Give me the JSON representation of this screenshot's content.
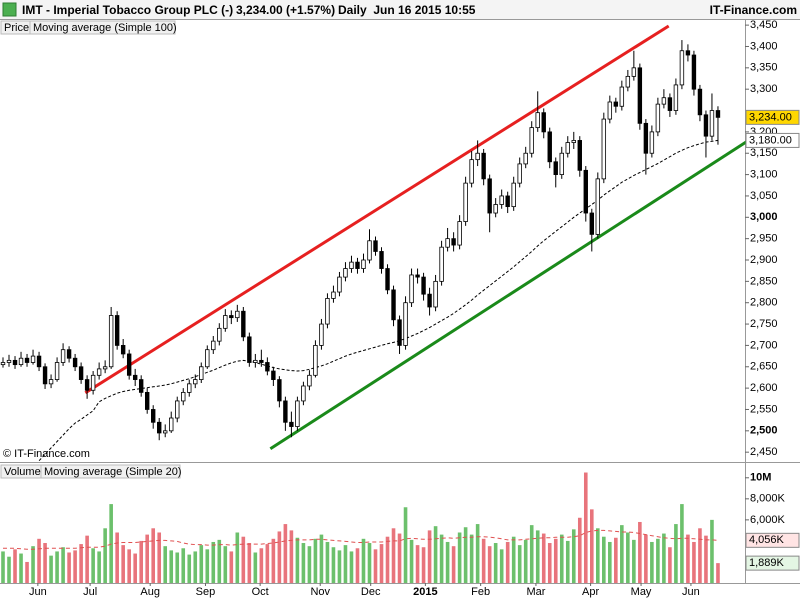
{
  "chart_data": {
    "type": "candlestick",
    "title": "IMT - Imperial Tobacco Group PLC (-)",
    "quote": "3,234.00 (+1.57%)",
    "period": "Daily  Jun 16 2015 10:55",
    "source": "IT-Finance.com",
    "copyright": "© IT-Finance.com",
    "legend": [
      "Price",
      "Moving average (Simple 100)"
    ],
    "colors": {
      "up": "#ffffff",
      "down": "#000000",
      "wick": "#000000",
      "ma": "#000000"
    },
    "xlim": [
      0,
      124
    ],
    "xticks": [
      {
        "value": 6.3,
        "label": "Jun"
      },
      {
        "value": 15,
        "label": "Jul"
      },
      {
        "value": 25,
        "label": "Aug"
      },
      {
        "value": 34.2,
        "label": "Sep"
      },
      {
        "value": 43.3,
        "label": "Oct"
      },
      {
        "value": 53.3,
        "label": "Nov"
      },
      {
        "value": 61.7,
        "label": "Dec"
      },
      {
        "value": 70.8,
        "label": "2015",
        "bold": true
      },
      {
        "value": 80,
        "label": "Feb"
      },
      {
        "value": 89.2,
        "label": "Mar"
      },
      {
        "value": 98.3,
        "label": "Apr"
      },
      {
        "value": 106.7,
        "label": "May"
      },
      {
        "value": 115,
        "label": "Jun"
      }
    ],
    "ylim": [
      2427,
      3462
    ],
    "yticks": [
      {
        "value": 2450,
        "label": "2,450"
      },
      {
        "value": 2500,
        "label": "2,500",
        "bold": true
      },
      {
        "value": 2550,
        "label": "2,550"
      },
      {
        "value": 2600,
        "label": "2,600"
      },
      {
        "value": 2650,
        "label": "2,650"
      },
      {
        "value": 2700,
        "label": "2,700"
      },
      {
        "value": 2750,
        "label": "2,750"
      },
      {
        "value": 2800,
        "label": "2,800"
      },
      {
        "value": 2850,
        "label": "2,850"
      },
      {
        "value": 2900,
        "label": "2,900"
      },
      {
        "value": 2950,
        "label": "2,950"
      },
      {
        "value": 3000,
        "label": "3,000",
        "bold": true
      },
      {
        "value": 3050,
        "label": "3,050"
      },
      {
        "value": 3100,
        "label": "3,100"
      },
      {
        "value": 3150,
        "label": "3,150"
      },
      {
        "value": 3200,
        "label": "3,200"
      },
      {
        "value": 3300,
        "label": "3,300"
      },
      {
        "value": 3350,
        "label": "3,350"
      },
      {
        "value": 3400,
        "label": "3,400"
      },
      {
        "value": 3450,
        "label": "3,450"
      }
    ],
    "last_labels": [
      {
        "value": 3234,
        "label": "3,234.00",
        "color": "#ffd700"
      },
      {
        "value": 3180,
        "label": "3,180.00",
        "color": "#ffffff"
      }
    ],
    "trendlines": [
      {
        "color": "#e62020",
        "x": [
          14.2,
          111.3
        ],
        "y": [
          2589,
          3448
        ]
      },
      {
        "color": "#1a8a1a",
        "x": [
          45,
          125.7
        ],
        "y": [
          2458,
          3190
        ]
      }
    ],
    "ohlc": [
      [
        2655,
        2672,
        2648,
        2660
      ],
      [
        2660,
        2678,
        2650,
        2665
      ],
      [
        2665,
        2675,
        2645,
        2655
      ],
      [
        2655,
        2685,
        2650,
        2670
      ],
      [
        2670,
        2680,
        2650,
        2660
      ],
      [
        2660,
        2690,
        2655,
        2675
      ],
      [
        2675,
        2685,
        2640,
        2650
      ],
      [
        2650,
        2658,
        2598,
        2610
      ],
      [
        2610,
        2632,
        2600,
        2620
      ],
      [
        2620,
        2672,
        2615,
        2660
      ],
      [
        2660,
        2705,
        2652,
        2690
      ],
      [
        2690,
        2698,
        2660,
        2670
      ],
      [
        2670,
        2680,
        2640,
        2650
      ],
      [
        2650,
        2660,
        2610,
        2620
      ],
      [
        2620,
        2630,
        2575,
        2595
      ],
      [
        2595,
        2640,
        2585,
        2630
      ],
      [
        2630,
        2660,
        2620,
        2645
      ],
      [
        2645,
        2665,
        2635,
        2650
      ],
      [
        2650,
        2790,
        2645,
        2770
      ],
      [
        2770,
        2780,
        2690,
        2700
      ],
      [
        2700,
        2715,
        2670,
        2680
      ],
      [
        2680,
        2690,
        2620,
        2630
      ],
      [
        2630,
        2645,
        2605,
        2620
      ],
      [
        2620,
        2630,
        2580,
        2590
      ],
      [
        2590,
        2600,
        2540,
        2550
      ],
      [
        2550,
        2560,
        2505,
        2520
      ],
      [
        2520,
        2530,
        2478,
        2495
      ],
      [
        2495,
        2515,
        2485,
        2500
      ],
      [
        2500,
        2545,
        2495,
        2530
      ],
      [
        2530,
        2580,
        2520,
        2570
      ],
      [
        2570,
        2600,
        2560,
        2590
      ],
      [
        2590,
        2620,
        2580,
        2610
      ],
      [
        2610,
        2632,
        2600,
        2620
      ],
      [
        2620,
        2660,
        2612,
        2650
      ],
      [
        2650,
        2700,
        2645,
        2690
      ],
      [
        2690,
        2722,
        2680,
        2710
      ],
      [
        2710,
        2752,
        2700,
        2740
      ],
      [
        2740,
        2785,
        2732,
        2770
      ],
      [
        2770,
        2782,
        2750,
        2765
      ],
      [
        2765,
        2795,
        2755,
        2780
      ],
      [
        2780,
        2790,
        2710,
        2720
      ],
      [
        2720,
        2730,
        2650,
        2660
      ],
      [
        2660,
        2680,
        2648,
        2665
      ],
      [
        2665,
        2690,
        2650,
        2660
      ],
      [
        2660,
        2672,
        2630,
        2640
      ],
      [
        2640,
        2650,
        2605,
        2620
      ],
      [
        2620,
        2628,
        2555,
        2570
      ],
      [
        2570,
        2580,
        2500,
        2520
      ],
      [
        2520,
        2545,
        2485,
        2510
      ],
      [
        2510,
        2580,
        2500,
        2570
      ],
      [
        2570,
        2615,
        2560,
        2605
      ],
      [
        2605,
        2642,
        2595,
        2630
      ],
      [
        2630,
        2712,
        2625,
        2700
      ],
      [
        2700,
        2762,
        2690,
        2750
      ],
      [
        2750,
        2822,
        2740,
        2810
      ],
      [
        2810,
        2840,
        2800,
        2825
      ],
      [
        2825,
        2872,
        2815,
        2860
      ],
      [
        2860,
        2895,
        2850,
        2880
      ],
      [
        2880,
        2910,
        2870,
        2895
      ],
      [
        2895,
        2905,
        2868,
        2880
      ],
      [
        2880,
        2915,
        2870,
        2900
      ],
      [
        2900,
        2972,
        2892,
        2945
      ],
      [
        2945,
        2955,
        2910,
        2920
      ],
      [
        2920,
        2930,
        2868,
        2880
      ],
      [
        2880,
        2890,
        2820,
        2830
      ],
      [
        2830,
        2840,
        2745,
        2760
      ],
      [
        2760,
        2770,
        2680,
        2700
      ],
      [
        2700,
        2815,
        2690,
        2800
      ],
      [
        2800,
        2880,
        2790,
        2865
      ],
      [
        2865,
        2880,
        2845,
        2860
      ],
      [
        2860,
        2870,
        2805,
        2820
      ],
      [
        2820,
        2835,
        2770,
        2790
      ],
      [
        2790,
        2865,
        2780,
        2850
      ],
      [
        2850,
        2945,
        2840,
        2930
      ],
      [
        2930,
        2975,
        2920,
        2950
      ],
      [
        2950,
        2965,
        2920,
        2935
      ],
      [
        2935,
        3005,
        2925,
        2990
      ],
      [
        2990,
        3095,
        2980,
        3080
      ],
      [
        3080,
        3155,
        3070,
        3135
      ],
      [
        3135,
        3180,
        3120,
        3150
      ],
      [
        3150,
        3160,
        3075,
        3090
      ],
      [
        3090,
        3100,
        2965,
        3010
      ],
      [
        3010,
        3045,
        3000,
        3030
      ],
      [
        3030,
        3065,
        3020,
        3050
      ],
      [
        3050,
        3060,
        3010,
        3025
      ],
      [
        3025,
        3095,
        3015,
        3080
      ],
      [
        3080,
        3140,
        3070,
        3125
      ],
      [
        3125,
        3165,
        3115,
        3150
      ],
      [
        3150,
        3225,
        3140,
        3210
      ],
      [
        3210,
        3295,
        3200,
        3245
      ],
      [
        3245,
        3255,
        3185,
        3200
      ],
      [
        3200,
        3210,
        3115,
        3130
      ],
      [
        3130,
        3140,
        3070,
        3100
      ],
      [
        3100,
        3165,
        3090,
        3150
      ],
      [
        3150,
        3190,
        3140,
        3175
      ],
      [
        3175,
        3200,
        3160,
        3180
      ],
      [
        3180,
        3190,
        3095,
        3110
      ],
      [
        3110,
        3120,
        2990,
        3010
      ],
      [
        3010,
        3020,
        2920,
        2960
      ],
      [
        2960,
        3105,
        2950,
        3090
      ],
      [
        3090,
        3245,
        3080,
        3230
      ],
      [
        3230,
        3285,
        3220,
        3270
      ],
      [
        3270,
        3280,
        3245,
        3260
      ],
      [
        3260,
        3320,
        3250,
        3305
      ],
      [
        3305,
        3345,
        3295,
        3330
      ],
      [
        3330,
        3390,
        3320,
        3350
      ],
      [
        3350,
        3360,
        3205,
        3220
      ],
      [
        3220,
        3230,
        3100,
        3150
      ],
      [
        3150,
        3215,
        3140,
        3200
      ],
      [
        3200,
        3280,
        3190,
        3265
      ],
      [
        3265,
        3300,
        3255,
        3280
      ],
      [
        3280,
        3290,
        3235,
        3250
      ],
      [
        3250,
        3325,
        3240,
        3310
      ],
      [
        3310,
        3415,
        3300,
        3390
      ],
      [
        3390,
        3405,
        3365,
        3380
      ],
      [
        3380,
        3390,
        3285,
        3300
      ],
      [
        3300,
        3310,
        3225,
        3240
      ],
      [
        3240,
        3250,
        3140,
        3190
      ],
      [
        3190,
        3290,
        3180,
        3250
      ],
      [
        3250,
        3260,
        3170,
        3234
      ]
    ],
    "ma": [
      null,
      null,
      null,
      null,
      null,
      null,
      2430,
      2445,
      2460,
      2475,
      2490,
      2505,
      2518,
      2527,
      2537,
      2547,
      2568,
      2576,
      2582,
      2588,
      2592,
      2595,
      2597,
      2599,
      2601,
      2603,
      2605,
      2607,
      2610,
      2614,
      2618,
      2622,
      2627,
      2632,
      2637,
      2642,
      2648,
      2654,
      2659,
      2663,
      2665,
      2663,
      2660,
      2656,
      2652,
      2648,
      2645,
      2643,
      2641,
      2640,
      2641,
      2644,
      2648,
      2652,
      2657,
      2663,
      2669,
      2675,
      2680,
      2684,
      2688,
      2692,
      2696,
      2700,
      2704,
      2707,
      2711,
      2716,
      2722,
      2728,
      2735,
      2742,
      2750,
      2758,
      2766,
      2775,
      2785,
      2795,
      2806,
      2818,
      2829,
      2840,
      2851,
      2862,
      2873,
      2884,
      2896,
      2908,
      2920,
      2933,
      2945,
      2956,
      2967,
      2978,
      2989,
      3000,
      3010,
      3020,
      3030,
      3040,
      3052,
      3062,
      3072,
      3082,
      3090,
      3098,
      3105,
      3112,
      3119,
      3126,
      3134,
      3142,
      3150,
      3157,
      3163,
      3168,
      3172,
      3176,
      3178,
      3180
    ],
    "volume": {
      "name": "Volume",
      "ma_name": "Moving average (Simple 20)",
      "colors": {
        "up": "#6cc06c",
        "down": "#e8747c",
        "ma": "#e05050",
        "name": "#3a9a3a"
      },
      "ylim": [
        0,
        11500
      ],
      "yticks": [
        {
          "value": 10000,
          "label": "10M",
          "bold": true
        },
        {
          "value": 8000,
          "label": "8,000K"
        },
        {
          "value": 6000,
          "label": "6,000K"
        }
      ],
      "last_labels": [
        {
          "value": 4056,
          "label": "4,056K",
          "color": "#ffe4e4"
        },
        {
          "value": 1889,
          "label": "1,889K",
          "color": "#e4f6e4"
        }
      ],
      "values": [
        3000,
        2500,
        3200,
        2800,
        2000,
        3500,
        4200,
        3800,
        2600,
        3000,
        3400,
        2900,
        3100,
        3700,
        4500,
        3300,
        3000,
        5200,
        7500,
        4800,
        3600,
        3200,
        2800,
        4000,
        4600,
        5200,
        4800,
        3500,
        3100,
        2900,
        3300,
        2700,
        3000,
        3600,
        3200,
        3900,
        4100,
        3500,
        3000,
        4800,
        4400,
        3800,
        2900,
        3300,
        3700,
        4200,
        4900,
        5600,
        5000,
        4300,
        3800,
        3500,
        4200,
        4600,
        3900,
        3400,
        3100,
        3600,
        3000,
        3300,
        4200,
        3800,
        3200,
        3700,
        4400,
        5200,
        4700,
        7200,
        4100,
        3600,
        3400,
        5000,
        5400,
        4600,
        3900,
        3500,
        4800,
        5300,
        4600,
        5600,
        4200,
        3500,
        3800,
        3200,
        3900,
        4400,
        3600,
        4100,
        5500,
        5000,
        4700,
        3800,
        4200,
        4600,
        4000,
        5100,
        6200,
        10500,
        7000,
        5200,
        4400,
        3900,
        4300,
        5500,
        4800,
        4100,
        5800,
        4600,
        3900,
        4200,
        4700,
        3400,
        5600,
        7500,
        4600,
        3900,
        5200,
        4500,
        6000,
        1889
      ],
      "ma": [
        3300,
        3300,
        3300,
        3250,
        3200,
        3200,
        3250,
        3300,
        3300,
        3300,
        3300,
        3300,
        3300,
        3350,
        3400,
        3400,
        3400,
        3500,
        3700,
        3800,
        3850,
        3850,
        3850,
        3900,
        3950,
        4000,
        4050,
        4050,
        4000,
        3950,
        3800,
        3700,
        3650,
        3650,
        3600,
        3600,
        3650,
        3650,
        3600,
        3650,
        3700,
        3700,
        3700,
        3700,
        3750,
        3800,
        3900,
        4000,
        4050,
        4100,
        4100,
        4100,
        4150,
        4150,
        4100,
        4050,
        4000,
        3950,
        3900,
        3850,
        3850,
        3900,
        3900,
        3900,
        3950,
        4000,
        4000,
        4200,
        4250,
        4200,
        4150,
        4150,
        4200,
        4250,
        4300,
        4250,
        4300,
        4350,
        4350,
        4400,
        4400,
        4350,
        4300,
        4200,
        4100,
        4100,
        4100,
        4150,
        4200,
        4250,
        4300,
        4300,
        4350,
        4350,
        4350,
        4400,
        4500,
        4800,
        4950,
        5000,
        5000,
        4950,
        4900,
        4850,
        4850,
        4800,
        4700,
        4600,
        4500,
        4400,
        4300,
        4250,
        4200,
        4250,
        4250,
        4200,
        4150,
        4100,
        4100,
        4056
      ]
    }
  }
}
